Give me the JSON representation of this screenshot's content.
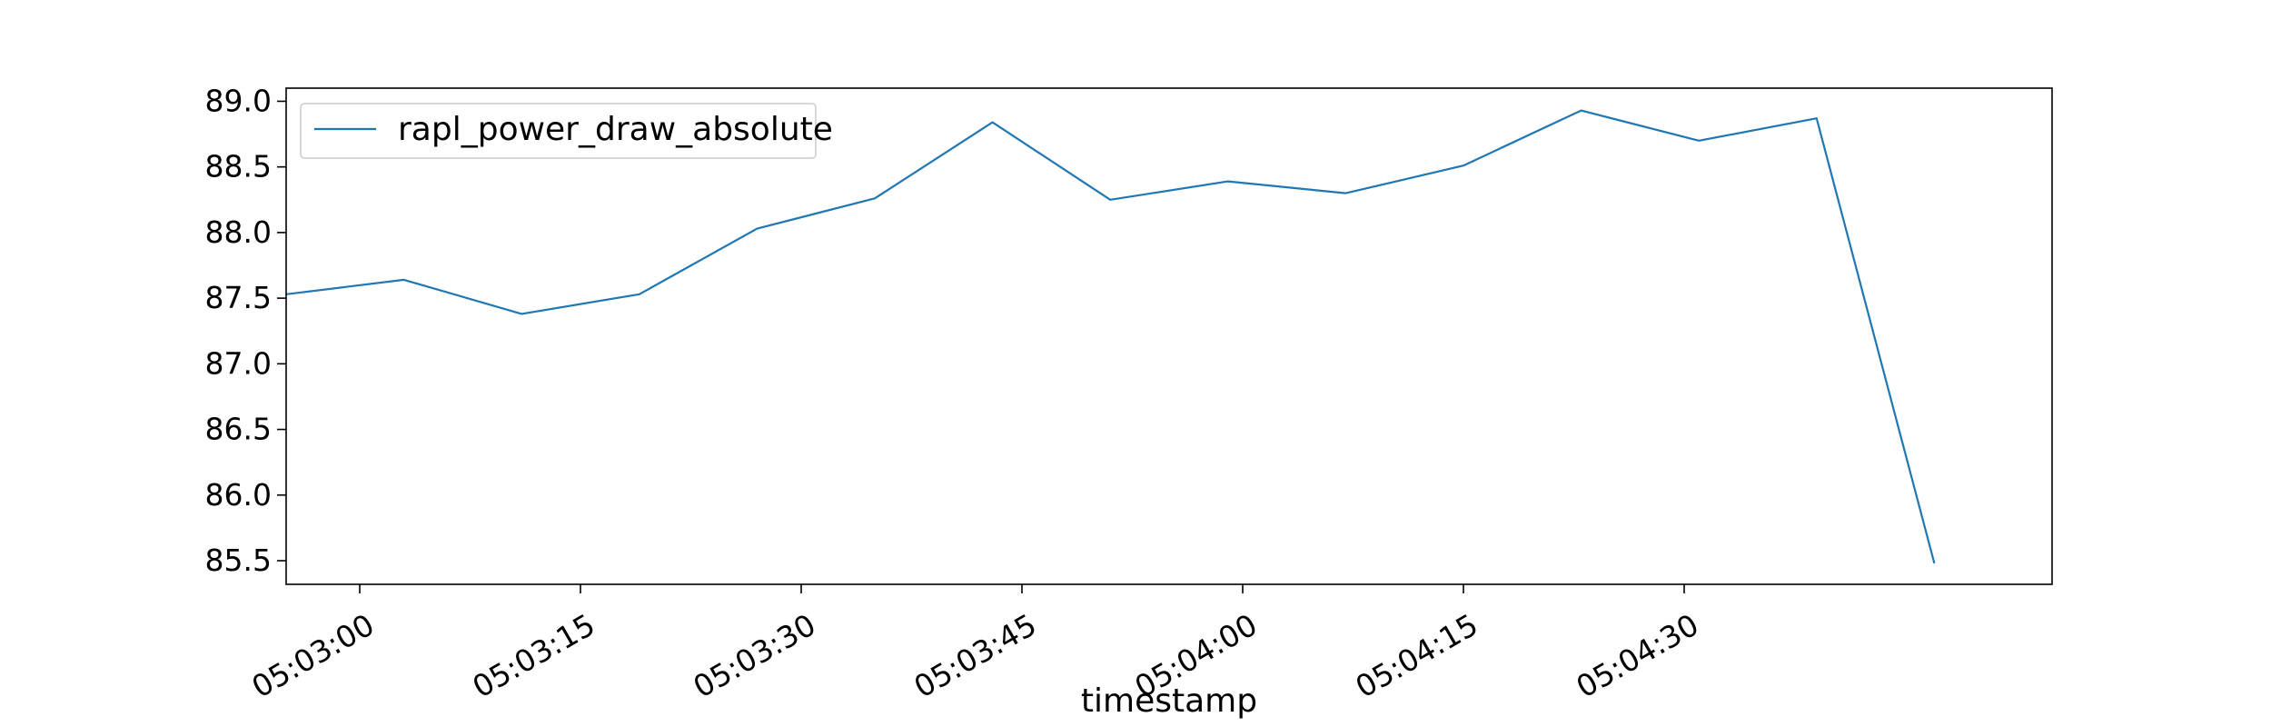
{
  "chart_data": {
    "type": "line",
    "title": "",
    "xlabel": "timestamp",
    "ylabel": "",
    "x": [
      "05:02:55",
      "05:03:03",
      "05:03:11",
      "05:03:19",
      "05:03:27",
      "05:03:35",
      "05:03:43",
      "05:03:51",
      "05:03:59",
      "05:04:07",
      "05:04:15",
      "05:04:23",
      "05:04:31",
      "05:04:39",
      "05:04:47"
    ],
    "series": [
      {
        "name": "rapl_power_draw_absolute",
        "color": "#1f77b4",
        "values": [
          87.53,
          87.64,
          87.38,
          87.53,
          88.03,
          88.26,
          88.84,
          88.25,
          88.39,
          88.3,
          88.51,
          88.93,
          88.7,
          88.87,
          85.48
        ]
      }
    ],
    "xlim": [
      "05:02:55",
      "05:04:55"
    ],
    "ylim": [
      85.32,
      89.1
    ],
    "x_ticks": [
      "05:03:00",
      "05:03:15",
      "05:03:30",
      "05:03:45",
      "05:04:00",
      "05:04:15",
      "05:04:30"
    ],
    "y_ticks": [
      "85.5",
      "86.0",
      "86.5",
      "87.0",
      "87.5",
      "88.0",
      "88.5",
      "89.0"
    ],
    "grid": false,
    "legend_position": "top-left"
  }
}
